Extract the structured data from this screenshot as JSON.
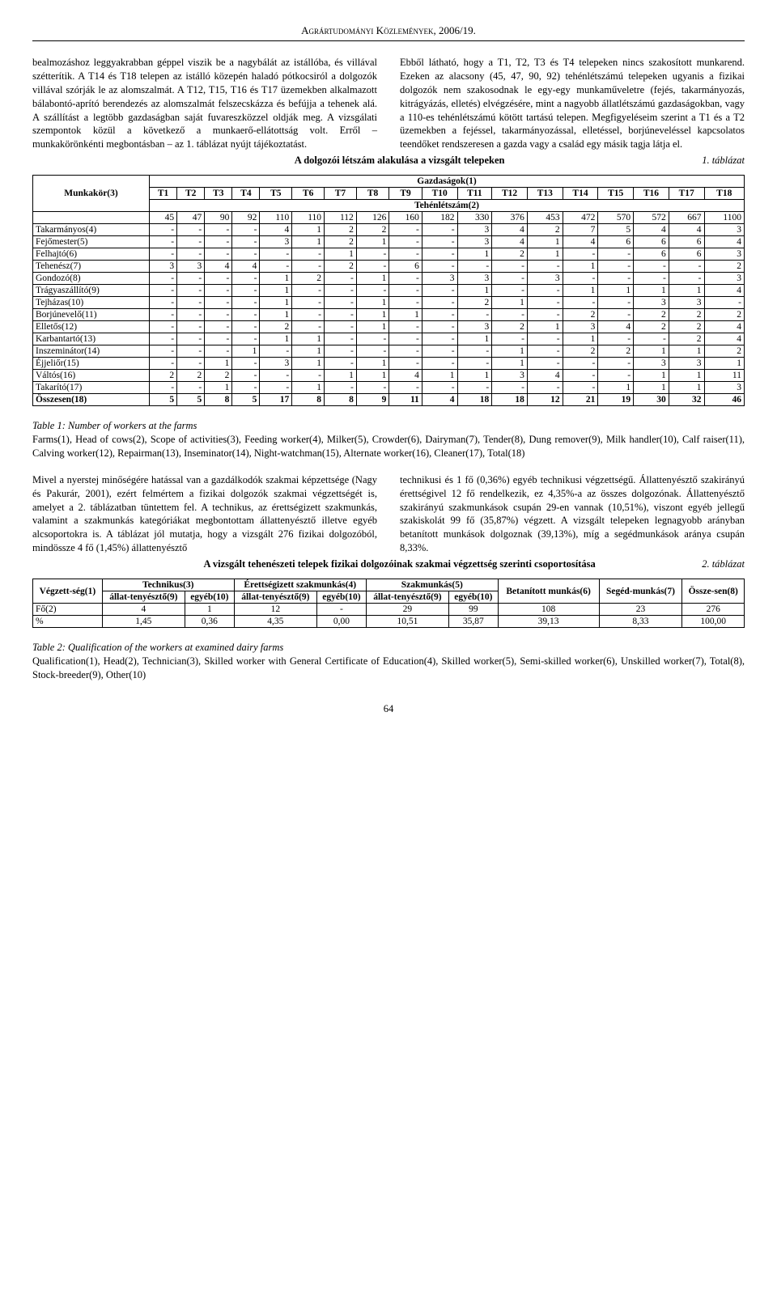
{
  "header": "Agrártudományi Közlemények, 2006/19.",
  "col_left": "bealmozáshoz leggyakrabban géppel viszik be a nagybálát az istállóba, és villával szétterítik. A T14 és T18 telepen az istálló közepén haladó pótkocsiról a dolgozók villával szórják le az alomszalmát. A T12, T15, T16 és T17 üzemekben alkalmazott bálabontó-aprító berendezés az alomszalmát felszecskázza és befújja a tehenek alá. A szállítást a legtöbb gazdaságban saját fuvareszközzel oldják meg. A vizsgálati szempontok közül a következő a munkaerő-ellátottság volt. Erről – munkakörönkénti megbontásban – az 1. táblázat nyújt tájékoztatást.",
  "col_right": "Ebből látható, hogy a T1, T2, T3 és T4 telepeken nincs szakosított munkarend. Ezeken az alacsony (45, 47, 90, 92) tehénlétszámú telepeken ugyanis a fizikai dolgozók nem szakosodnak le egy-egy munkaműveletre (fejés, takarmányozás, kitrágyázás, elletés) elvégzésére, mint a nagyobb állatlétszámú gazdaságokban, vagy a 110-es tehénlétszámú kötött tartású telepen. Megfigyeléseim szerint a T1 és a T2 üzemekben a fejéssel, takarmányozással, elletéssel, borjúneveléssel kapcsolatos teendőket rendszeresen a gazda vagy a család egy másik tagja látja el.",
  "table1": {
    "caption": "A dolgozói létszám alakulása a vizsgált telepeken",
    "right_label": "1. táblázat",
    "rowheader": "Munkakör(3)",
    "superheader": "Gazdaságok(1)",
    "subheader": "Tehénlétszám(2)",
    "farms": [
      "T1",
      "T2",
      "T3",
      "T4",
      "T5",
      "T6",
      "T7",
      "T8",
      "T9",
      "T10",
      "T11",
      "T12",
      "T13",
      "T14",
      "T15",
      "T16",
      "T17",
      "T18"
    ],
    "cows": [
      "45",
      "47",
      "90",
      "92",
      "110",
      "110",
      "112",
      "126",
      "160",
      "182",
      "330",
      "376",
      "453",
      "472",
      "570",
      "572",
      "667",
      "1100"
    ],
    "rows": [
      {
        "label": "Takarmányos(4)",
        "v": [
          "-",
          "-",
          "-",
          "-",
          "4",
          "1",
          "2",
          "2",
          "-",
          "-",
          "3",
          "4",
          "2",
          "7",
          "5",
          "4",
          "4",
          "3"
        ]
      },
      {
        "label": "Fejőmester(5)",
        "v": [
          "-",
          "-",
          "-",
          "-",
          "3",
          "1",
          "2",
          "1",
          "-",
          "-",
          "3",
          "4",
          "1",
          "4",
          "6",
          "6",
          "6",
          "4"
        ]
      },
      {
        "label": "Felhajtó(6)",
        "v": [
          "-",
          "-",
          "-",
          "-",
          "-",
          "-",
          "1",
          "-",
          "-",
          "-",
          "1",
          "2",
          "1",
          "-",
          "-",
          "6",
          "6",
          "3"
        ]
      },
      {
        "label": "Tehenész(7)",
        "v": [
          "3",
          "3",
          "4",
          "4",
          "-",
          "-",
          "2",
          "-",
          "6",
          "-",
          "-",
          "-",
          "-",
          "1",
          "-",
          "-",
          "-",
          "2"
        ]
      },
      {
        "label": "Gondozó(8)",
        "v": [
          "-",
          "-",
          "-",
          "-",
          "1",
          "2",
          "-",
          "1",
          "-",
          "3",
          "3",
          "-",
          "3",
          "-",
          "-",
          "-",
          "-",
          "3"
        ]
      },
      {
        "label": "Trágyaszállító(9)",
        "v": [
          "-",
          "-",
          "-",
          "-",
          "1",
          "-",
          "-",
          "-",
          "-",
          "-",
          "1",
          "-",
          "-",
          "1",
          "1",
          "1",
          "1",
          "4"
        ]
      },
      {
        "label": "Tejházas(10)",
        "v": [
          "-",
          "-",
          "-",
          "-",
          "1",
          "-",
          "-",
          "1",
          "-",
          "-",
          "2",
          "1",
          "-",
          "-",
          "-",
          "3",
          "3",
          "-"
        ]
      },
      {
        "label": "Borjúnevelő(11)",
        "v": [
          "-",
          "-",
          "-",
          "-",
          "1",
          "-",
          "-",
          "1",
          "1",
          "-",
          "-",
          "-",
          "-",
          "2",
          "-",
          "2",
          "2",
          "2"
        ]
      },
      {
        "label": "Elletős(12)",
        "v": [
          "-",
          "-",
          "-",
          "-",
          "2",
          "-",
          "-",
          "1",
          "-",
          "-",
          "3",
          "2",
          "1",
          "3",
          "4",
          "2",
          "2",
          "4"
        ]
      },
      {
        "label": "Karbantartó(13)",
        "v": [
          "-",
          "-",
          "-",
          "-",
          "1",
          "1",
          "-",
          "-",
          "-",
          "-",
          "1",
          "-",
          "-",
          "1",
          "-",
          "-",
          "2",
          "4"
        ]
      },
      {
        "label": "Inszeminátor(14)",
        "v": [
          "-",
          "-",
          "-",
          "1",
          "-",
          "1",
          "-",
          "-",
          "-",
          "-",
          "-",
          "1",
          "-",
          "2",
          "2",
          "1",
          "1",
          "2"
        ]
      },
      {
        "label": "Éjjeliőr(15)",
        "v": [
          "-",
          "-",
          "1",
          "-",
          "3",
          "1",
          "-",
          "1",
          "-",
          "-",
          "-",
          "1",
          "-",
          "-",
          "-",
          "3",
          "3",
          "1"
        ]
      },
      {
        "label": "Váltós(16)",
        "v": [
          "2",
          "2",
          "2",
          "-",
          "-",
          "-",
          "1",
          "1",
          "4",
          "1",
          "1",
          "3",
          "4",
          "-",
          "-",
          "1",
          "1",
          "11"
        ]
      },
      {
        "label": "Takarító(17)",
        "v": [
          "-",
          "-",
          "1",
          "-",
          "-",
          "1",
          "-",
          "-",
          "-",
          "-",
          "-",
          "-",
          "-",
          "-",
          "1",
          "1",
          "1",
          "3"
        ]
      },
      {
        "label": "Összesen(18)",
        "v": [
          "5",
          "5",
          "8",
          "5",
          "17",
          "8",
          "8",
          "9",
          "11",
          "4",
          "18",
          "18",
          "12",
          "21",
          "19",
          "30",
          "32",
          "46"
        ],
        "bold": true
      }
    ],
    "footnote_title": "Table 1: Number of workers at the farms",
    "footnote_body": "Farms(1), Head of cows(2), Scope of activities(3), Feeding worker(4), Milker(5), Crowder(6), Dairyman(7), Tender(8), Dung remover(9), Milk handler(10), Calf raiser(11), Calving worker(12), Repairman(13), Inseminator(14), Night-watchman(15), Alternate worker(16), Cleaner(17), Total(18)"
  },
  "mid_left": "Mivel a nyerstej minőségére hatással van a gazdálkodók szakmai képzettsége (Nagy és Pakurár, 2001), ezért felmértem a fizikai dolgozók szakmai végzettségét is, amelyet a 2. táblázatban tüntettem fel. A technikus, az érettségizett szakmunkás, valamint a szakmunkás kategóriákat megbontottam állattenyésztő illetve egyéb alcsoportokra is. A táblázat jól mutatja, hogy a vizsgált 276 fizikai dolgozóból, mindössze 4 fő (1,45%) állattenyésztő",
  "mid_right": "technikusi és 1 fő (0,36%) egyéb technikusi végzettségű. Állattenyésztő szakirányú érettségivel 12 fő rendelkezik, ez 4,35%-a az összes dolgozónak. Állattenyésztő szakirányú szakmunkások csupán 29-en vannak (10,51%), viszont egyéb jellegű szakiskolát 99 fő (35,87%) végzett. A vizsgált telepeken legnagyobb arányban betanított munkások dolgoznak (39,13%), míg a segédmunkások aránya csupán 8,33%.",
  "table2": {
    "caption": "A vizsgált tehenészeti telepek fizikai dolgozóinak szakmai végzettség szerinti csoportosítása",
    "right_label": "2. táblázat",
    "headers_top": [
      "Végzett-ség(1)",
      "Technikus(3)",
      "Érettségizett szakmunkás(4)",
      "Szakmunkás(5)",
      "Betanított munkás(6)",
      "Segéd-munkás(7)",
      "Össze-sen(8)"
    ],
    "sub_pair": [
      "állat-tenyésztő(9)",
      "egyéb(10)"
    ],
    "rows": [
      {
        "label": "Fő(2)",
        "v": [
          "4",
          "1",
          "12",
          "-",
          "29",
          "99",
          "108",
          "23",
          "276"
        ]
      },
      {
        "label": "%",
        "v": [
          "1,45",
          "0,36",
          "4,35",
          "0,00",
          "10,51",
          "35,87",
          "39,13",
          "8,33",
          "100,00"
        ]
      }
    ],
    "footnote_title": "Table 2: Qualification of the workers at examined dairy farms",
    "footnote_body": "Qualification(1), Head(2), Technician(3), Skilled worker with General Certificate of Education(4), Skilled worker(5), Semi-skilled worker(6), Unskilled worker(7), Total(8), Stock-breeder(9), Other(10)"
  },
  "page_number": "64"
}
